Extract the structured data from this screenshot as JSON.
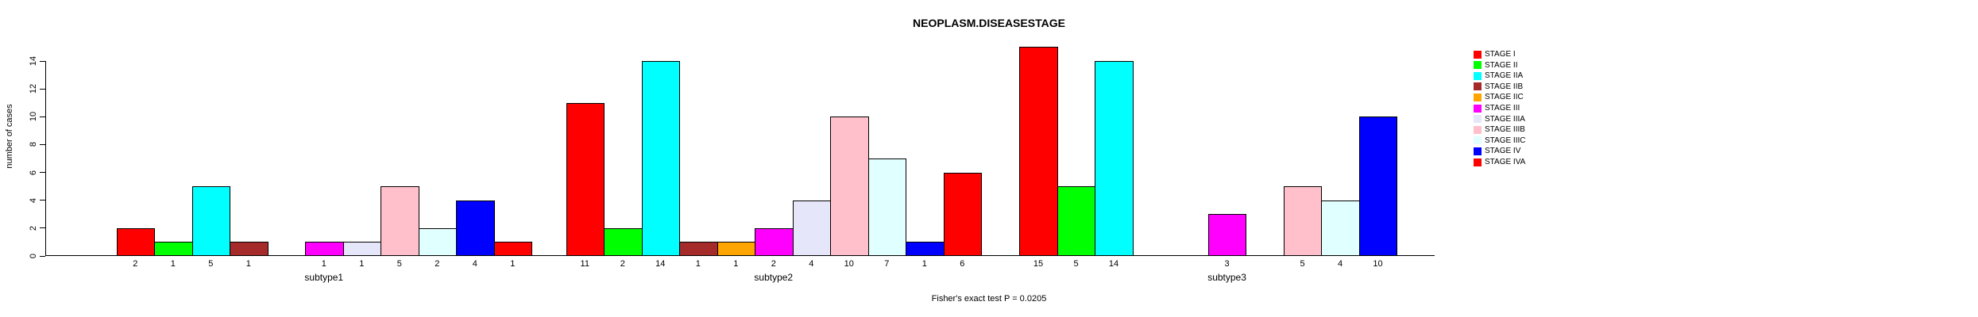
{
  "title": "NEOPLASM.DISEASESTAGE",
  "footer": "Fisher's exact test P = 0.0205",
  "colors": {
    "background": "#FFFFFF",
    "foreground": "#000000"
  },
  "chart_data": {
    "type": "bar",
    "grouped": true,
    "title": "NEOPLASM.DISEASESTAGE",
    "xlabel": "",
    "ylabel": "number of cases",
    "ylim": [
      0,
      14
    ],
    "yticks": [
      0,
      2,
      4,
      6,
      8,
      10,
      12,
      14
    ],
    "grid": false,
    "legend_position": "right",
    "bar_value_labels": true,
    "annotation": "Fisher's exact test P = 0.0205",
    "categories": [
      "subtype1",
      "subtype2",
      "subtype3"
    ],
    "series": [
      {
        "name": "STAGE I",
        "color": "#FF0000",
        "values": [
          2,
          11,
          15
        ]
      },
      {
        "name": "STAGE II",
        "color": "#00FF00",
        "values": [
          1,
          2,
          5
        ]
      },
      {
        "name": "STAGE IIA",
        "color": "#00FFFF",
        "values": [
          5,
          14,
          14
        ]
      },
      {
        "name": "STAGE IIB",
        "color": "#A52A2A",
        "values": [
          1,
          1,
          0
        ]
      },
      {
        "name": "STAGE IIC",
        "color": "#FFA500",
        "values": [
          0,
          1,
          0
        ]
      },
      {
        "name": "STAGE III",
        "color": "#FF00FF",
        "values": [
          1,
          2,
          3
        ]
      },
      {
        "name": "STAGE IIIA",
        "color": "#E6E6FA",
        "values": [
          1,
          4,
          0
        ]
      },
      {
        "name": "STAGE IIIB",
        "color": "#FFC0CB",
        "values": [
          5,
          10,
          5
        ]
      },
      {
        "name": "STAGE IIIC",
        "color": "#E0FFFF",
        "values": [
          2,
          7,
          4
        ]
      },
      {
        "name": "STAGE IV",
        "color": "#0000FF",
        "values": [
          4,
          1,
          10
        ]
      },
      {
        "name": "STAGE IVA",
        "color": "#FF0000",
        "values": [
          1,
          6,
          0
        ]
      }
    ]
  }
}
